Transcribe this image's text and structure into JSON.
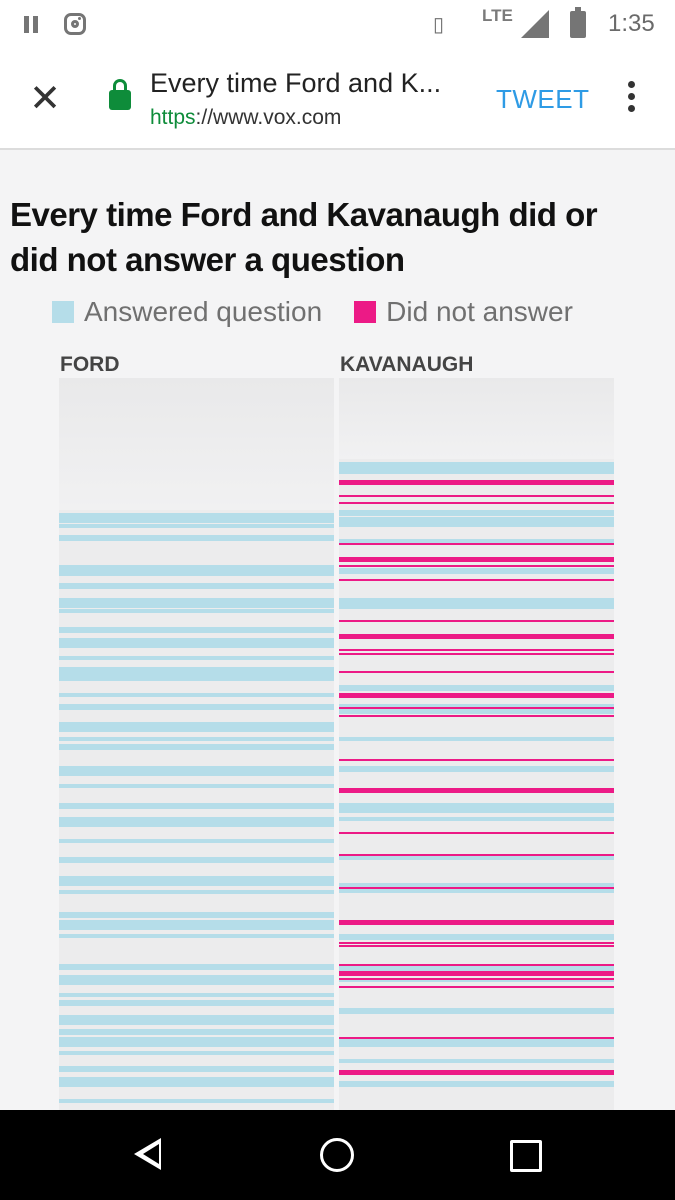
{
  "status_bar": {
    "time": "1:35",
    "network": "LTE",
    "icons": [
      "pause-icon",
      "instagram-icon",
      "vibrate-icon",
      "signal-icon",
      "battery-icon"
    ]
  },
  "browser": {
    "page_title": "Every time Ford and K...",
    "url_scheme": "https",
    "url_rest": "://www.vox.com",
    "tweet_label": "TWEET",
    "icons": [
      "close-icon",
      "lock-icon",
      "more-vert-icon"
    ]
  },
  "article": {
    "headline": "Every time Ford and Kavanaugh did or did not answer a question"
  },
  "colors": {
    "answered": "#b5dde9",
    "not_answered": "#ec1a86",
    "background": "#f4f4f5",
    "tweet": "#2e9be5"
  },
  "chart_data": {
    "type": "strip",
    "title": "Every time Ford and Kavanaugh did or did not answer a question",
    "legend": [
      {
        "label": "Answered question",
        "color": "#b5dde9"
      },
      {
        "label": "Did not answer",
        "color": "#ec1a86"
      }
    ],
    "series": [
      {
        "name": "FORD",
        "note": "estimated vertical timeline positions (0–1 of visible strip)",
        "unanswered_blank_end": 0.18,
        "answered": [
          0.185,
          0.2,
          0.215,
          0.255,
          0.265,
          0.28,
          0.3,
          0.315,
          0.34,
          0.355,
          0.38,
          0.395,
          0.4,
          0.43,
          0.445,
          0.47,
          0.49,
          0.5,
          0.53,
          0.555,
          0.58,
          0.6,
          0.63,
          0.655,
          0.68,
          0.7,
          0.73,
          0.74,
          0.76,
          0.8,
          0.815,
          0.84,
          0.85,
          0.87,
          0.875,
          0.89,
          0.9,
          0.92,
          0.94,
          0.955,
          0.985
        ],
        "not_answered": []
      },
      {
        "name": "KAVANAUGH",
        "unanswered_blank_end": 0.11,
        "answered": [
          0.115,
          0.125,
          0.18,
          0.19,
          0.22,
          0.26,
          0.3,
          0.31,
          0.42,
          0.445,
          0.49,
          0.53,
          0.58,
          0.6,
          0.65,
          0.69,
          0.74,
          0.76,
          0.8,
          0.82,
          0.86,
          0.9,
          0.93,
          0.96
        ],
        "not_answered": [
          0.14,
          0.16,
          0.17,
          0.225,
          0.245,
          0.255,
          0.275,
          0.33,
          0.35,
          0.37,
          0.375,
          0.4,
          0.43,
          0.45,
          0.46,
          0.52,
          0.56,
          0.62,
          0.65,
          0.695,
          0.74,
          0.77,
          0.775,
          0.8,
          0.81,
          0.82,
          0.83,
          0.9,
          0.945,
          0.95
        ]
      }
    ]
  }
}
